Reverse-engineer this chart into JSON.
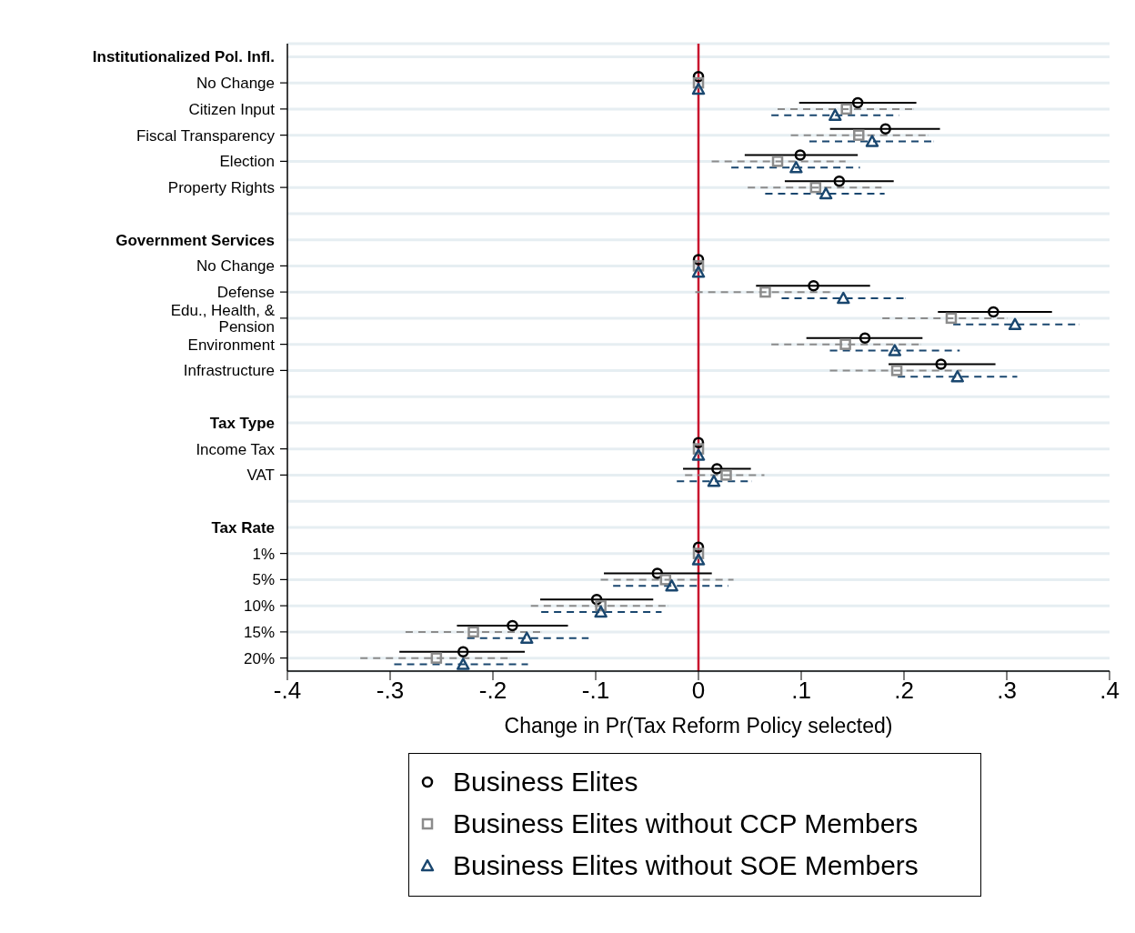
{
  "chart_data": {
    "type": "scatter",
    "orientation": "horizontal",
    "categories": [
      "Institutionalized Pol. Infl.",
      "No Change",
      "Citizen Input",
      "Fiscal Transparency",
      "Election",
      "Property Rights",
      null,
      "Government Services",
      "No Change",
      "Defense",
      "Edu., Health, & Pension",
      "Environment",
      "Infrastructure",
      null,
      "Tax Type",
      "Income Tax",
      "VAT",
      null,
      "Tax Rate",
      "1%",
      "5%",
      "10%",
      "15%",
      "20%"
    ],
    "xlabel": "Change in Pr(Tax Reform Policy selected)",
    "xlim": [
      -0.4,
      0.4
    ],
    "xticks": [
      {
        "value": -0.4,
        "label": "-.4"
      },
      {
        "value": -0.3,
        "label": "-.3"
      },
      {
        "value": -0.2,
        "label": "-.2"
      },
      {
        "value": -0.1,
        "label": "-.1"
      },
      0,
      {
        "value": 0.1,
        "label": ".1"
      },
      {
        "value": 0.2,
        "label": ".2"
      },
      {
        "value": 0.3,
        "label": ".3"
      },
      {
        "value": 0.4,
        "label": ".4"
      }
    ],
    "grid": "y",
    "legend": "bottom",
    "ref_lines": [
      {
        "axis": "x",
        "value": 0,
        "color": "#c8102e"
      }
    ],
    "series": [
      {
        "name": "Business Elites",
        "color": "#000000",
        "marker": "circle",
        "line_style": "solid",
        "values": [
          null,
          0,
          0.155,
          0.182,
          0.099,
          0.137,
          null,
          null,
          0,
          0.112,
          0.287,
          0.162,
          0.236,
          null,
          null,
          0,
          0.018,
          null,
          null,
          0,
          -0.04,
          -0.099,
          -0.181,
          -0.229
        ],
        "errors": [
          null,
          null,
          [
            0.098,
            0.212
          ],
          [
            0.128,
            0.235
          ],
          [
            0.045,
            0.155
          ],
          [
            0.084,
            0.19
          ],
          null,
          null,
          null,
          [
            0.056,
            0.167
          ],
          [
            0.233,
            0.344
          ],
          [
            0.105,
            0.218
          ],
          [
            0.185,
            0.289
          ],
          null,
          null,
          null,
          [
            -0.015,
            0.051
          ],
          null,
          null,
          null,
          [
            -0.092,
            0.013
          ],
          [
            -0.154,
            -0.044
          ],
          [
            -0.235,
            -0.127
          ],
          [
            -0.291,
            -0.169
          ]
        ]
      },
      {
        "name": "Business Elites without CCP Members",
        "color": "#8c8c8c",
        "marker": "square",
        "line_style": "dashed",
        "values": [
          null,
          0,
          0.144,
          0.156,
          0.077,
          0.114,
          null,
          null,
          0,
          0.065,
          0.246,
          0.143,
          0.193,
          null,
          null,
          0,
          0.027,
          null,
          null,
          0,
          -0.032,
          -0.095,
          -0.219,
          -0.255
        ],
        "errors": [
          null,
          null,
          [
            0.077,
            0.209
          ],
          [
            0.09,
            0.223
          ],
          [
            0.013,
            0.143
          ],
          [
            0.048,
            0.178
          ],
          null,
          null,
          null,
          [
            -0.003,
            0.129
          ],
          [
            0.179,
            0.3
          ],
          [
            0.071,
            0.216
          ],
          [
            0.128,
            0.256
          ],
          null,
          null,
          null,
          [
            -0.013,
            0.064
          ],
          null,
          null,
          null,
          [
            -0.095,
            0.034
          ],
          [
            -0.163,
            -0.03
          ],
          [
            -0.285,
            -0.153
          ],
          [
            -0.329,
            -0.184
          ]
        ]
      },
      {
        "name": "Business Elites without SOE Members",
        "color": "#1a476f",
        "marker": "triangle",
        "line_style": "dashed",
        "values": [
          null,
          0,
          0.133,
          0.169,
          0.095,
          0.124,
          null,
          null,
          0,
          0.141,
          0.308,
          0.191,
          0.252,
          null,
          null,
          0,
          0.015,
          null,
          null,
          0,
          -0.026,
          -0.095,
          -0.167,
          -0.229
        ],
        "errors": [
          null,
          null,
          [
            0.071,
            0.195
          ],
          [
            0.108,
            0.229
          ],
          [
            0.032,
            0.157
          ],
          [
            0.065,
            0.181
          ],
          null,
          null,
          null,
          [
            0.081,
            0.201
          ],
          [
            0.248,
            0.37
          ],
          [
            0.128,
            0.254
          ],
          [
            0.194,
            0.31
          ],
          null,
          null,
          null,
          [
            -0.021,
            0.052
          ],
          null,
          null,
          null,
          [
            -0.083,
            0.029
          ],
          [
            -0.153,
            -0.036
          ],
          [
            -0.225,
            -0.107
          ],
          [
            -0.296,
            -0.166
          ]
        ]
      }
    ]
  }
}
